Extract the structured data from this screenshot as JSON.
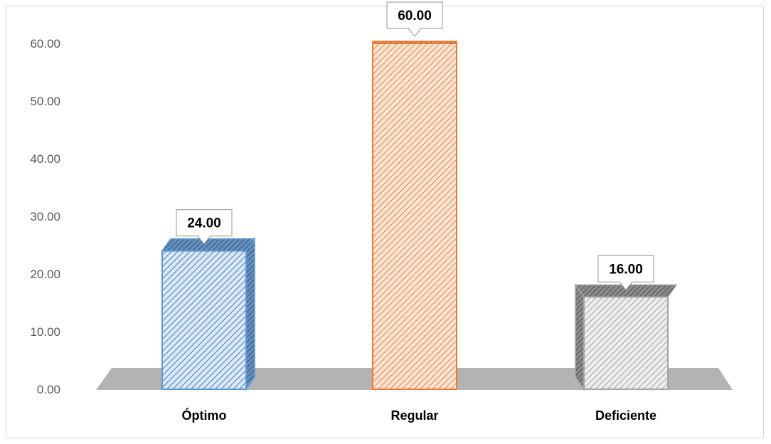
{
  "chart_data": {
    "type": "bar",
    "categories": [
      "Óptimo",
      "Regular",
      "Deficiente"
    ],
    "values": [
      24.0,
      60.0,
      16.0
    ],
    "data_labels": [
      "24.00",
      "60.00",
      "16.00"
    ],
    "title": "",
    "xlabel": "",
    "ylabel": "",
    "ylim": [
      0,
      60
    ],
    "yticks": [
      "0.00",
      "10.00",
      "20.00",
      "30.00",
      "40.00",
      "50.00",
      "60.00"
    ],
    "grid": false,
    "legend": "none",
    "style": "3d-column",
    "colors": [
      "#5b9bd5",
      "#ed7d31",
      "#a5a5a5"
    ],
    "floor_color": "#b3b3b3"
  }
}
